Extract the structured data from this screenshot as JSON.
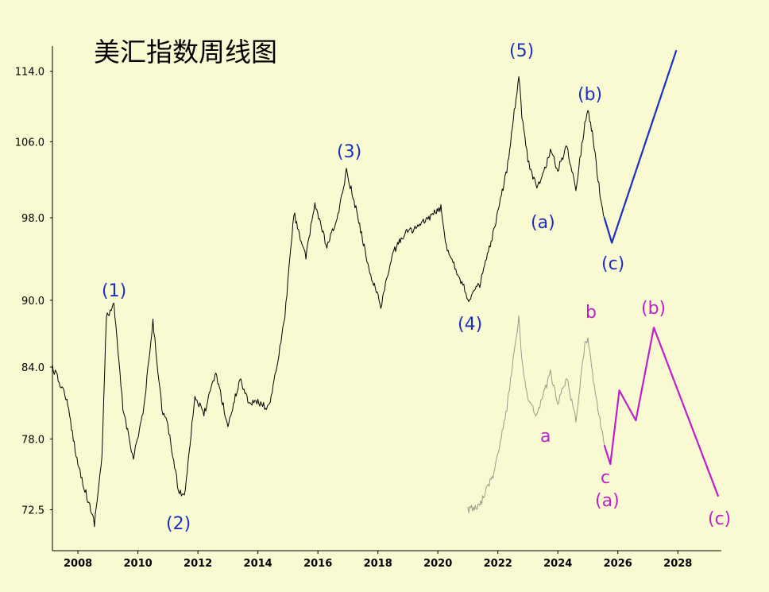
{
  "chart_data": {
    "type": "line",
    "title": "美汇指数周线图",
    "xlabel": "",
    "ylabel": "",
    "xlim": [
      2007.15,
      2029.45
    ],
    "ylim": [
      69.5,
      117.0
    ],
    "yscale": "log",
    "grid": false,
    "x_ticks": [
      "2008",
      "2010",
      "2012",
      "2014",
      "2016",
      "2018",
      "2020",
      "2022",
      "2024",
      "2026",
      "2028"
    ],
    "y_ticks": [
      "72.5",
      "78.0",
      "84.0",
      "90.0",
      "98.0",
      "106.0",
      "114.0"
    ],
    "series": [
      {
        "name": "",
        "color": "#000000",
        "x": [
          2007.15,
          2007.6,
          2008.0,
          2008.3,
          2008.55,
          2008.8,
          2008.95,
          2009.2,
          2009.5,
          2009.85,
          2010.2,
          2010.5,
          2010.8,
          2011.0,
          2011.35,
          2011.55,
          2011.9,
          2012.2,
          2012.6,
          2013.0,
          2013.4,
          2013.7,
          2014.0,
          2014.35,
          2014.6,
          2014.9,
          2015.2,
          2015.6,
          2015.9,
          2016.3,
          2016.7,
          2016.95,
          2017.3,
          2017.7,
          2018.1,
          2018.5,
          2018.9,
          2019.3,
          2019.7,
          2020.1,
          2020.25,
          2020.6,
          2020.9,
          2021.0,
          2021.4,
          2021.9,
          2022.3,
          2022.7,
          2022.8,
          2023.0,
          2023.3,
          2023.5,
          2023.75,
          2024.0,
          2024.3,
          2024.6,
          2024.9,
          2025.0,
          2025.15,
          2025.4,
          2025.55
        ],
        "y": [
          84.0,
          81.5,
          76.0,
          73.5,
          71.5,
          76.5,
          88.5,
          89.5,
          80.5,
          76.5,
          80.5,
          88.0,
          80.5,
          79.0,
          74.0,
          73.5,
          81.5,
          80.0,
          83.5,
          79.0,
          83.0,
          81.0,
          81.0,
          80.5,
          83.5,
          88.5,
          98.5,
          94.0,
          99.5,
          95.0,
          98.5,
          103.0,
          98.5,
          93.0,
          89.5,
          94.5,
          96.5,
          97.0,
          98.0,
          99.0,
          95.5,
          93.0,
          91.0,
          90.0,
          91.5,
          97.0,
          103.0,
          113.5,
          109.0,
          104.0,
          101.0,
          102.5,
          105.0,
          103.0,
          105.5,
          101.0,
          108.0,
          109.5,
          107.0,
          100.5,
          98.0
        ]
      },
      {
        "name": "",
        "color": "#9a9a8c",
        "x": [
          2021.0,
          2021.4,
          2021.9,
          2022.3,
          2022.7,
          2022.8,
          2023.0,
          2023.3,
          2023.5,
          2023.75,
          2024.0,
          2024.3,
          2024.6,
          2024.9,
          2025.0,
          2025.15,
          2025.4,
          2025.55
        ],
        "y": [
          72.5,
          72.8,
          75.5,
          80.5,
          88.5,
          84.5,
          81.0,
          80.0,
          81.5,
          83.5,
          81.0,
          83.0,
          79.5,
          86.0,
          86.5,
          83.5,
          79.5,
          77.5
        ]
      },
      {
        "name": "",
        "color": "#1a2fc2",
        "x": [
          2025.55,
          2025.8,
          2027.95
        ],
        "y": [
          98.0,
          95.5,
          116.5
        ]
      },
      {
        "name": "",
        "color": "#bb22cc",
        "x": [
          2025.55,
          2025.75,
          2026.05,
          2026.6,
          2027.2,
          2029.35
        ],
        "y": [
          77.5,
          76.0,
          82.0,
          79.5,
          87.5,
          73.5
        ]
      }
    ],
    "annotations_blue": [
      "(1)",
      "(2)",
      "(3)",
      "(4)",
      "(5)",
      "(a)",
      "(b)",
      "(c)"
    ],
    "annotations_magenta": [
      "a",
      "b",
      "c",
      "(a)",
      "(b)",
      "(c)"
    ]
  }
}
